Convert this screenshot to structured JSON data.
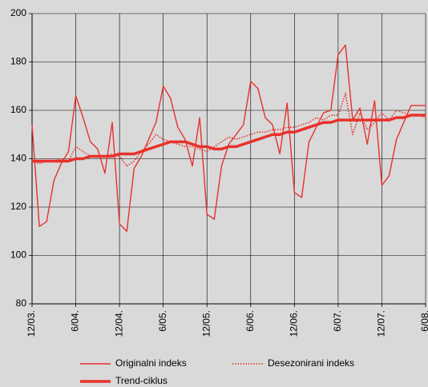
{
  "chart_data": {
    "type": "line",
    "categories": [
      "12/03.",
      null,
      null,
      null,
      null,
      null,
      "6/04.",
      null,
      null,
      null,
      null,
      null,
      "12/04.",
      null,
      null,
      null,
      null,
      null,
      "6/05.",
      null,
      null,
      null,
      null,
      null,
      "12/05.",
      null,
      null,
      null,
      null,
      null,
      "6/06.",
      null,
      null,
      null,
      null,
      null,
      "12/06.",
      null,
      null,
      null,
      null,
      null,
      "6/07.",
      null,
      null,
      null,
      null,
      null,
      "12/07.",
      null,
      null,
      null,
      null,
      null,
      "6/08."
    ],
    "series": [
      {
        "name": "Originalni indeks",
        "color": "#e8312b",
        "style": "solid",
        "values": [
          154,
          112,
          114,
          131,
          138,
          143,
          166,
          157,
          147,
          144,
          134,
          155,
          113,
          110,
          136,
          141,
          148,
          155,
          170,
          165,
          153,
          148,
          137,
          157,
          117,
          115,
          137,
          146,
          150,
          154,
          172,
          169,
          157,
          154,
          142,
          163,
          126,
          124,
          147,
          153,
          159,
          160,
          183,
          187,
          156,
          161,
          146,
          164,
          129,
          133,
          148,
          155,
          162,
          162,
          162
        ]
      },
      {
        "name": "Desezonirani indeks",
        "color": "#e8312b",
        "style": "dotted",
        "values": [
          139,
          138,
          139,
          139,
          140,
          139,
          145,
          143,
          141,
          141,
          141,
          142,
          141,
          137,
          139,
          143,
          146,
          150,
          148,
          147,
          146,
          145,
          145,
          144,
          143,
          145,
          147,
          149,
          148,
          149,
          150,
          151,
          151,
          152,
          152,
          153,
          153,
          154,
          155,
          157,
          156,
          158,
          158,
          167,
          150,
          159,
          152,
          155,
          159,
          156,
          160,
          159,
          158,
          158,
          157
        ]
      },
      {
        "name": "Trend-ciklus",
        "color": "#e8312b",
        "style": "thick",
        "values": [
          139,
          139,
          139,
          139,
          139,
          139,
          140,
          140,
          141,
          141,
          141,
          141,
          142,
          142,
          142,
          143,
          144,
          145,
          146,
          147,
          147,
          147,
          146,
          145,
          145,
          144,
          144,
          145,
          145,
          146,
          147,
          148,
          149,
          150,
          150,
          151,
          151,
          152,
          153,
          154,
          155,
          155,
          156,
          156,
          156,
          156,
          156,
          156,
          156,
          156,
          157,
          157,
          158,
          158,
          158
        ]
      }
    ],
    "ylim": [
      80,
      200
    ],
    "yticks": [
      80,
      100,
      120,
      140,
      160,
      180,
      200
    ],
    "grid": true
  }
}
